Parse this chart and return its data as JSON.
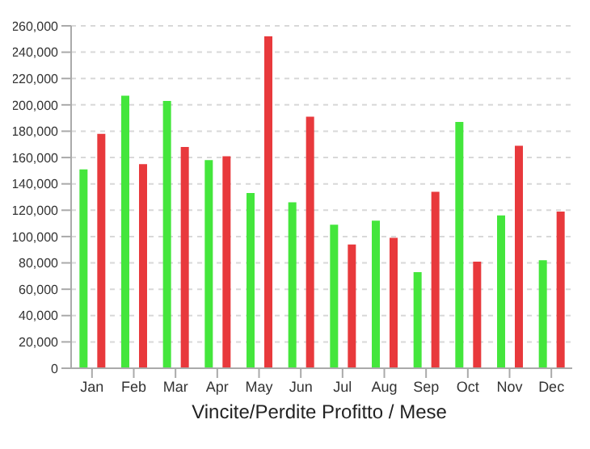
{
  "chart_data": {
    "type": "bar",
    "xlabel": "Vincite/Perdite Profitto / Mese",
    "categories": [
      "Jan",
      "Feb",
      "Mar",
      "Apr",
      "May",
      "Jun",
      "Jul",
      "Aug",
      "Sep",
      "Oct",
      "Nov",
      "Dec"
    ],
    "series": [
      {
        "color": "#44e63c",
        "values": [
          151000,
          207000,
          203000,
          158000,
          133000,
          126000,
          109000,
          112000,
          73000,
          187000,
          116000,
          82000
        ]
      },
      {
        "color": "#e8393c",
        "values": [
          178000,
          155000,
          168000,
          161000,
          252000,
          191000,
          94000,
          99000,
          134000,
          81000,
          169000,
          119000
        ]
      }
    ],
    "ylim": [
      0,
      260000
    ],
    "yticks": [
      {
        "value": 0,
        "label": "0"
      },
      {
        "value": 20000,
        "label": "20,000"
      },
      {
        "value": 40000,
        "label": "40,000"
      },
      {
        "value": 60000,
        "label": "60,000"
      },
      {
        "value": 80000,
        "label": "80,000"
      },
      {
        "value": 100000,
        "label": "100,000"
      },
      {
        "value": 120000,
        "label": "120,000"
      },
      {
        "value": 140000,
        "label": "140,000"
      },
      {
        "value": 160000,
        "label": "160,000"
      },
      {
        "value": 180000,
        "label": "180,000"
      },
      {
        "value": 200000,
        "label": "200,000"
      },
      {
        "value": 220000,
        "label": "220,000"
      },
      {
        "value": 240000,
        "label": "240,000"
      },
      {
        "value": 260000,
        "label": "260,000"
      }
    ],
    "grid": "y",
    "legend": false
  }
}
